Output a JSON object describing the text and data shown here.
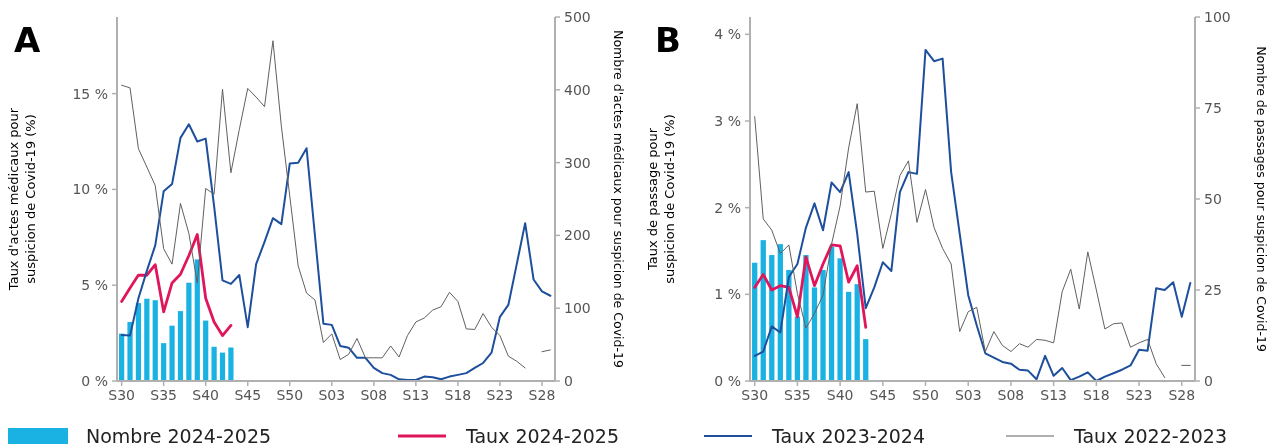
{
  "chart_data": [
    {
      "type": "line",
      "title": "A",
      "ylabel": "Taux d'actes médicaux pour\nsuspicion de Covid-19 (%)",
      "y2label": "Nombre d'actes médicaux pour suspicion de Covid-19",
      "legend": "bottom",
      "categories": [
        "S30",
        null,
        null,
        null,
        null,
        "S35",
        null,
        null,
        null,
        null,
        "S40",
        null,
        null,
        null,
        null,
        "S45",
        null,
        null,
        null,
        null,
        "S50",
        null,
        null,
        null,
        null,
        "S03",
        null,
        null,
        null,
        null,
        "S08",
        null,
        null,
        null,
        null,
        "S13",
        null,
        null,
        null,
        null,
        "S18",
        null,
        null,
        null,
        null,
        "S23",
        null,
        null,
        null,
        null,
        "S28",
        null
      ],
      "ylim": [
        0,
        19
      ],
      "yticks": [
        {
          "value": 0,
          "label": "0 %"
        },
        {
          "value": 5,
          "label": "5 %"
        },
        {
          "value": 10,
          "label": "10 %"
        },
        {
          "value": 15,
          "label": "15 %"
        }
      ],
      "y2lim": [
        0,
        500
      ],
      "y2ticks": [
        0,
        100,
        200,
        300,
        400,
        500
      ],
      "series": [
        {
          "name": "Nombre 2024-2025",
          "type": "bar",
          "axis": "y2",
          "color": "#19b2e3",
          "values": [
            65,
            81,
            107,
            113,
            111,
            52,
            76,
            96,
            135,
            167,
            83,
            47,
            39,
            46,
            null,
            null,
            null,
            null,
            null,
            null,
            null,
            null,
            null,
            null,
            null,
            null,
            null,
            null,
            null,
            null,
            null,
            null,
            null,
            null,
            null,
            null,
            null,
            null,
            null,
            null,
            null,
            null,
            null,
            null,
            null,
            null,
            null,
            null,
            null,
            null,
            null,
            null
          ]
        },
        {
          "name": "Taux 2024-2025",
          "color": "#e0165c",
          "values": [
            4.15,
            4.86,
            5.53,
            5.52,
            6.07,
            3.61,
            5.12,
            5.57,
            6.55,
            7.65,
            4.32,
            3.08,
            2.37,
            2.9,
            null,
            null,
            null,
            null,
            null,
            null,
            null,
            null,
            null,
            null,
            null,
            null,
            null,
            null,
            null,
            null,
            null,
            null,
            null,
            null,
            null,
            null,
            null,
            null,
            null,
            null,
            null,
            null,
            null,
            null,
            null,
            null,
            null,
            null,
            null,
            null,
            null,
            null
          ]
        },
        {
          "name": "Taux 2023-2024",
          "color": "#1d4f9c",
          "values": [
            2.4,
            2.37,
            4.32,
            5.75,
            7.08,
            9.9,
            10.28,
            12.69,
            13.4,
            12.5,
            12.65,
            9.13,
            5.25,
            5.07,
            5.53,
            2.81,
            6.1,
            7.26,
            8.5,
            8.19,
            11.35,
            11.39,
            12.15,
            7.57,
            2.99,
            2.93,
            1.83,
            1.74,
            1.21,
            1.21,
            0.68,
            0.41,
            0.32,
            0.09,
            0.05,
            0.05,
            0.23,
            0.2,
            0.09,
            0.23,
            0.32,
            0.41,
            0.68,
            0.94,
            1.48,
            3.35,
            3.97,
            6.1,
            8.24,
            5.3,
            4.68,
            4.45
          ]
        },
        {
          "name": "Taux 2022-2023",
          "color": "#606060",
          "values": [
            15.44,
            15.3,
            12.12,
            11.17,
            10.2,
            6.9,
            6.1,
            9.27,
            7.7,
            5.12,
            10.05,
            9.75,
            15.23,
            10.87,
            13.13,
            15.27,
            14.82,
            14.32,
            17.76,
            13.3,
            9.66,
            6.01,
            4.59,
            4.23,
            2.01,
            2.46,
            1.12,
            1.39,
            2.22,
            1.21,
            1.21,
            1.21,
            1.83,
            1.25,
            2.37,
            3.08,
            3.29,
            3.7,
            3.88,
            4.63,
            4.15,
            2.72,
            2.69,
            3.52,
            2.81,
            2.37,
            1.3,
            1.03,
            0.68,
            null,
            1.53,
            1.62
          ]
        }
      ]
    },
    {
      "type": "line",
      "title": "B",
      "ylabel": "Taux de passage pour\nsuspicion de Covid-19 (%)",
      "y2label": "Nombre de passages pour suspicion de Covid-19",
      "categories": [
        "S30",
        null,
        null,
        null,
        null,
        "S35",
        null,
        null,
        null,
        null,
        "S40",
        null,
        null,
        null,
        null,
        "S45",
        null,
        null,
        null,
        null,
        "S50",
        null,
        null,
        null,
        null,
        "S03",
        null,
        null,
        null,
        null,
        "S08",
        null,
        null,
        null,
        null,
        "S13",
        null,
        null,
        null,
        null,
        "S18",
        null,
        null,
        null,
        null,
        "S23",
        null,
        null,
        null,
        null,
        "S28",
        null
      ],
      "ylim": [
        0,
        4.2
      ],
      "yticks": [
        {
          "value": 0,
          "label": "0 %"
        },
        {
          "value": 1,
          "label": "1 %"
        },
        {
          "value": 2,
          "label": "2 %"
        },
        {
          "value": 3,
          "label": "3 %"
        },
        {
          "value": 4,
          "label": "4 %"
        }
      ],
      "y2lim": [
        0,
        100
      ],
      "y2ticks": [
        0,
        25,
        50,
        75,
        100
      ],
      "series": [
        {
          "type": "bar",
          "axis": "y2",
          "color": "#19b2e3",
          "values": [
            32.5,
            38.7,
            34.6,
            37.6,
            30.5,
            17.7,
            34.6,
            25.7,
            30.5,
            36.9,
            33.7,
            24.5,
            26.6,
            11.5,
            null,
            null,
            null,
            null,
            null,
            null,
            null,
            null,
            null,
            null,
            null,
            null,
            null,
            null,
            null,
            null,
            null,
            null,
            null,
            null,
            null,
            null,
            null,
            null,
            null,
            null,
            null,
            null,
            null,
            null,
            null,
            null,
            null,
            null,
            null,
            null,
            null,
            null
          ]
        },
        {
          "color": "#e0165c",
          "values": [
            1.08,
            1.23,
            1.05,
            1.1,
            1.08,
            0.74,
            1.43,
            1.1,
            1.35,
            1.57,
            1.56,
            1.14,
            1.33,
            0.62,
            null,
            null,
            null,
            null,
            null,
            null,
            null,
            null,
            null,
            null,
            null,
            null,
            null,
            null,
            null,
            null,
            null,
            null,
            null,
            null,
            null,
            null,
            null,
            null,
            null,
            null,
            null,
            null,
            null,
            null,
            null,
            null,
            null,
            null,
            null,
            null,
            null,
            null
          ]
        },
        {
          "color": "#1d4f9c",
          "values": [
            0.29,
            0.34,
            0.63,
            0.56,
            1.2,
            1.35,
            1.77,
            2.05,
            1.74,
            2.29,
            2.18,
            2.41,
            1.7,
            0.84,
            1.08,
            1.37,
            1.27,
            2.18,
            2.41,
            2.39,
            3.82,
            3.69,
            3.72,
            2.41,
            1.7,
            0.99,
            0.64,
            0.32,
            0.27,
            0.22,
            0.2,
            0.13,
            0.12,
            0.02,
            0.29,
            0.06,
            0.15,
            0.01,
            0.05,
            0.1,
            0,
            0.05,
            0.09,
            0.13,
            0.18,
            0.36,
            0.35,
            1.07,
            1.05,
            1.14,
            0.74,
            1.13
          ]
        },
        {
          "color": "#606060",
          "values": [
            3.05,
            1.87,
            1.74,
            1.47,
            1.57,
            1.01,
            0.61,
            0.78,
            0.99,
            1.58,
            2.02,
            2.69,
            3.2,
            2.18,
            2.19,
            1.53,
            1.93,
            2.37,
            2.54,
            1.83,
            2.21,
            1.77,
            1.53,
            1.35,
            0.57,
            0.8,
            0.85,
            0.34,
            0.57,
            0.41,
            0.34,
            0.43,
            0.39,
            0.48,
            0.47,
            0.44,
            1.03,
            1.29,
            0.83,
            1.49,
            1.05,
            0.6,
            0.66,
            0.67,
            0.39,
            0.44,
            0.48,
            0.2,
            0.04,
            null,
            0.18,
            0.18
          ]
        }
      ]
    }
  ]
}
